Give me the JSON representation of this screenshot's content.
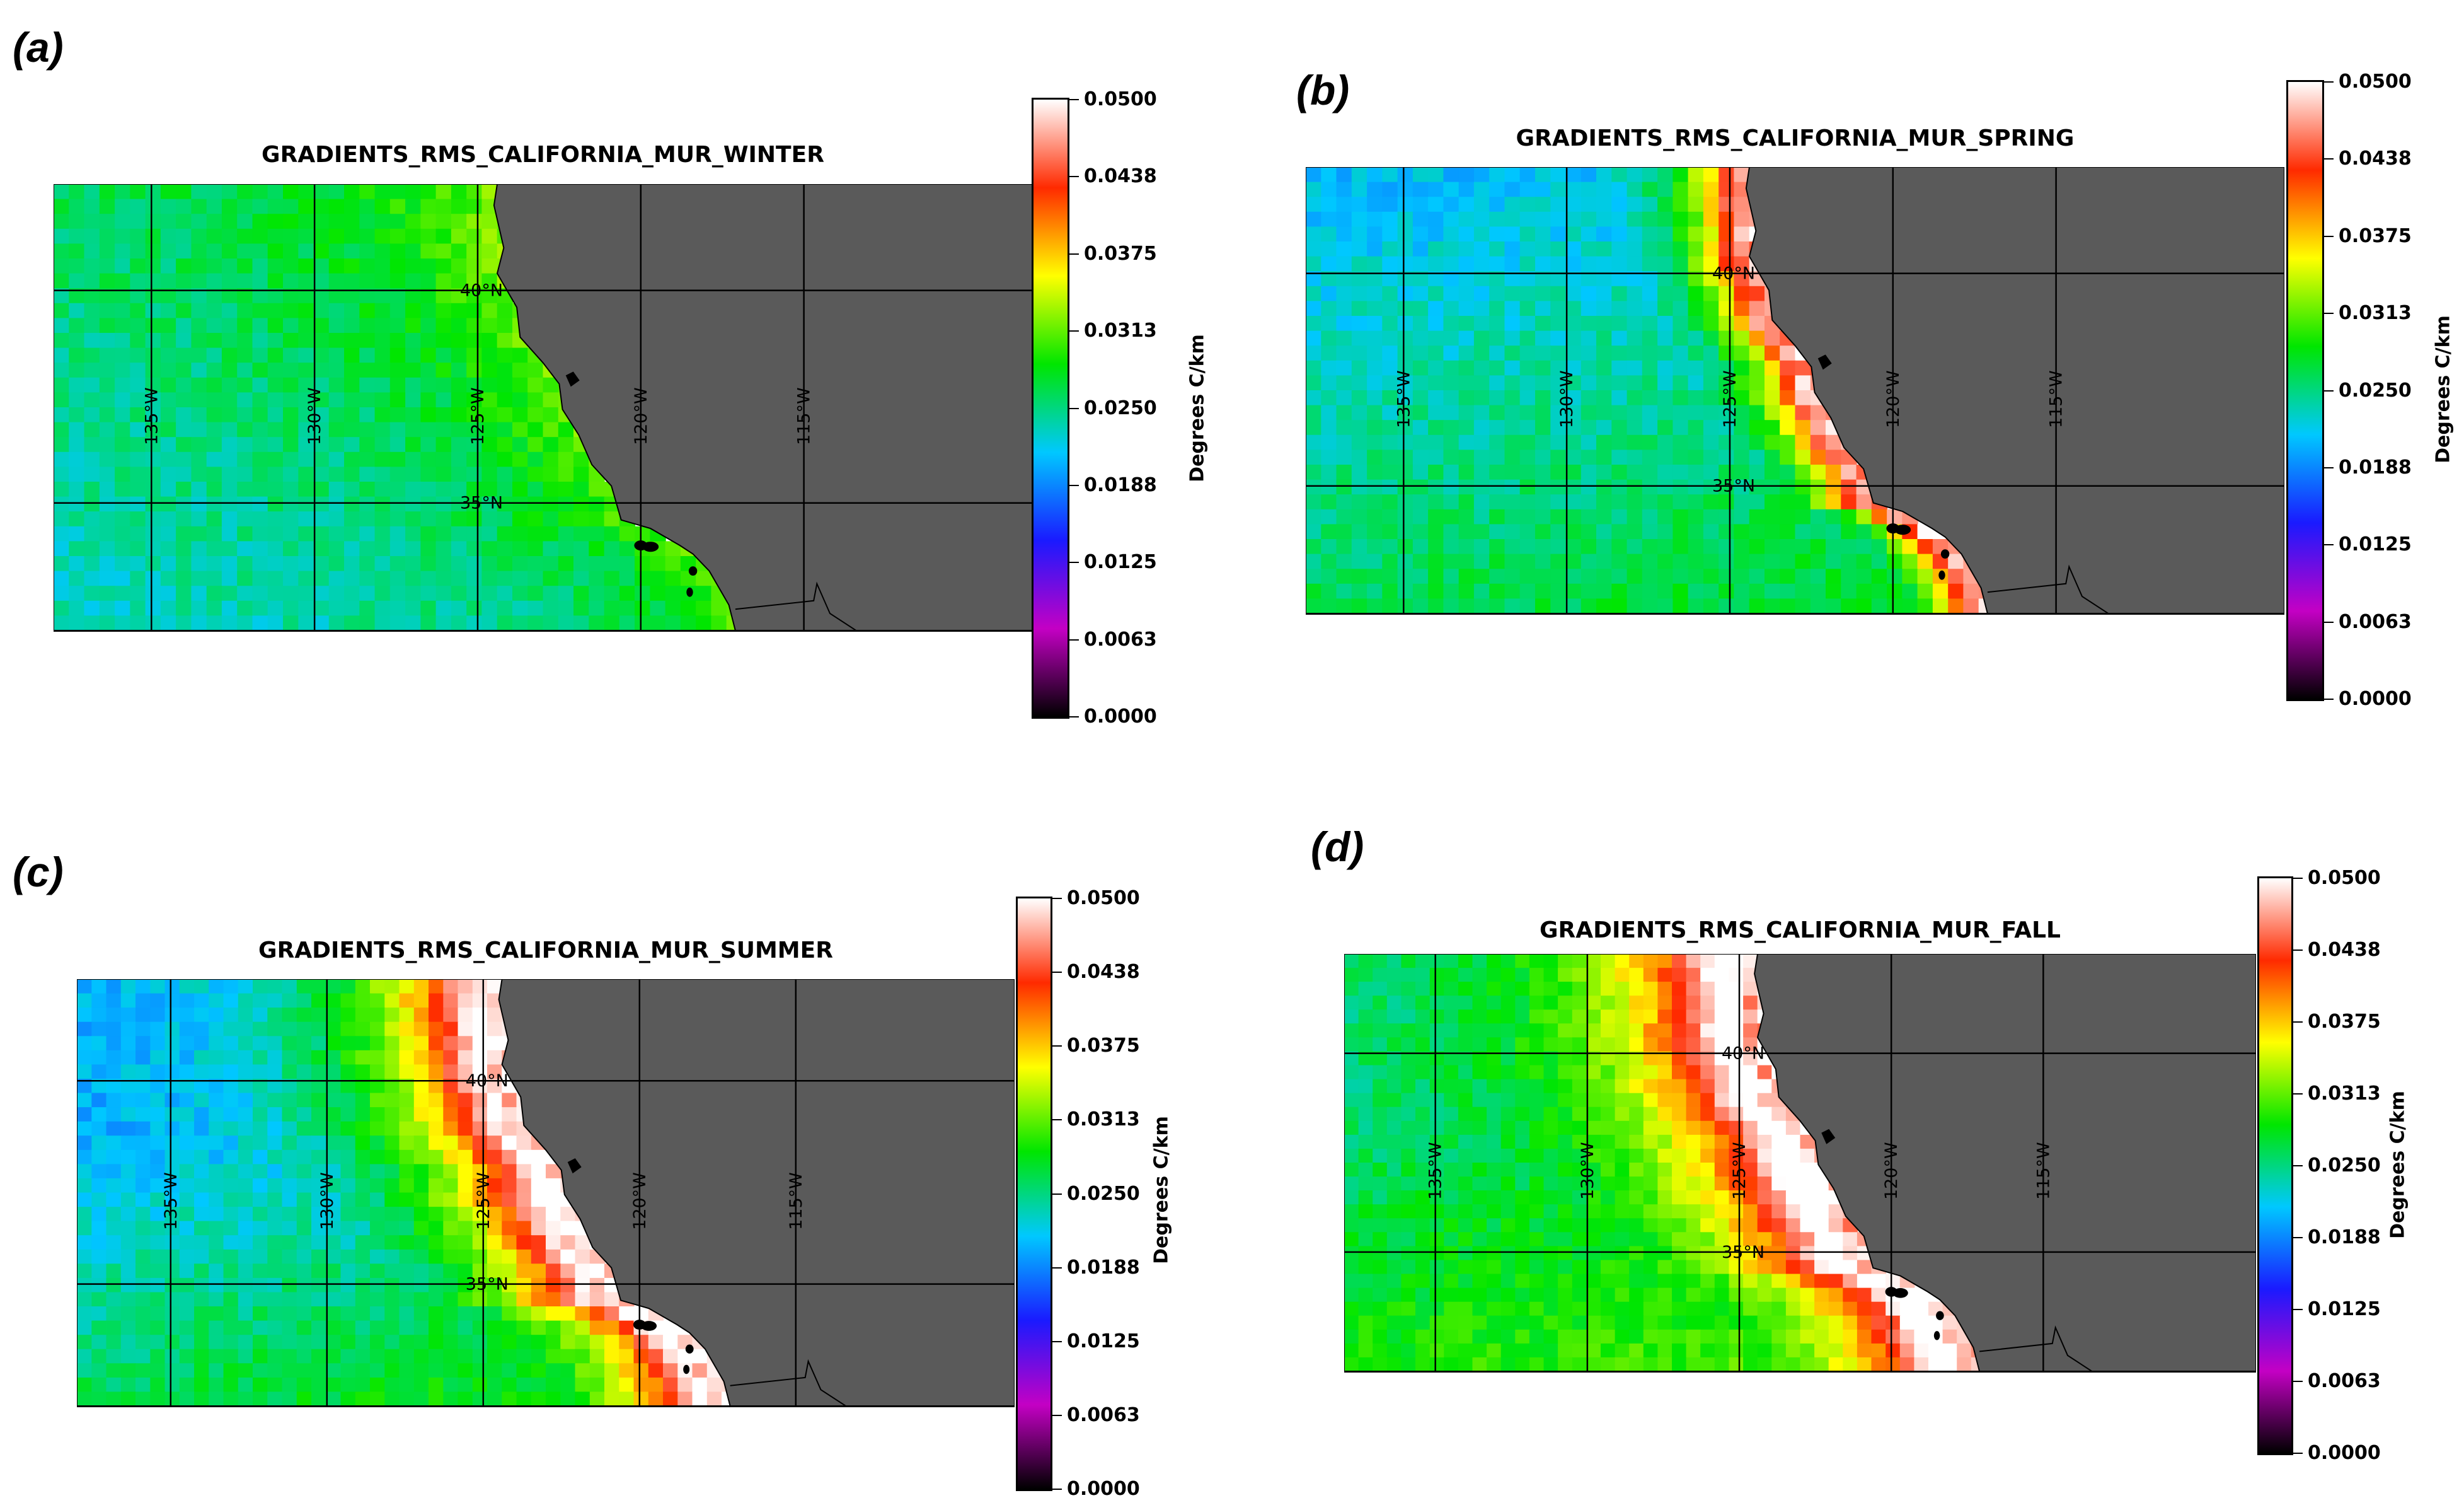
{
  "figure": {
    "panels": [
      {
        "letter": "(a)",
        "title": "GRADIENTS_RMS_CALIFORNIA_MUR_WINTER",
        "season": "winter",
        "grid_labels": {
          "lon": [
            "135°W",
            "130°W",
            "125°W",
            "120°W",
            "115°W"
          ],
          "lat": [
            "40°N",
            "35°N"
          ]
        },
        "colorbar": {
          "label": "Degrees C/km",
          "ticks": [
            "0.0500",
            "0.0438",
            "0.0375",
            "0.0313",
            "0.0250",
            "0.0188",
            "0.0125",
            "0.0063",
            "0.0000"
          ]
        }
      },
      {
        "letter": "(b)",
        "title": "GRADIENTS_RMS_CALIFORNIA_MUR_SPRING",
        "season": "spring",
        "grid_labels": {
          "lon": [
            "135°W",
            "130°W",
            "125°W",
            "120°W",
            "115°W"
          ],
          "lat": [
            "40°N",
            "35°N"
          ]
        },
        "colorbar": {
          "label": "Degrees C/km",
          "ticks": [
            "0.0500",
            "0.0438",
            "0.0375",
            "0.0313",
            "0.0250",
            "0.0188",
            "0.0125",
            "0.0063",
            "0.0000"
          ]
        }
      },
      {
        "letter": "(c)",
        "title": "GRADIENTS_RMS_CALIFORNIA_MUR_SUMMER",
        "season": "summer",
        "grid_labels": {
          "lon": [
            "135°W",
            "130°W",
            "125°W",
            "120°W",
            "115°W"
          ],
          "lat": [
            "40°N",
            "35°N"
          ]
        },
        "colorbar": {
          "label": "Degrees C/km",
          "ticks": [
            "0.0500",
            "0.0438",
            "0.0375",
            "0.0313",
            "0.0250",
            "0.0188",
            "0.0125",
            "0.0063",
            "0.0000"
          ]
        }
      },
      {
        "letter": "(d)",
        "title": "GRADIENTS_RMS_CALIFORNIA_MUR_FALL",
        "season": "fall",
        "grid_labels": {
          "lon": [
            "135°W",
            "130°W",
            "125°W",
            "120°W",
            "115°W"
          ],
          "lat": [
            "40°N",
            "35°N"
          ]
        },
        "colorbar": {
          "label": "Degrees C/km",
          "ticks": [
            "0.0500",
            "0.0438",
            "0.0375",
            "0.0313",
            "0.0250",
            "0.0188",
            "0.0125",
            "0.0063",
            "0.0000"
          ]
        }
      }
    ],
    "colors": {
      "land": "#5a5a5a",
      "colormap": [
        "#000000",
        "#c400c4",
        "#1a1aff",
        "#00c8ff",
        "#00e600",
        "#ffff00",
        "#ff2a00",
        "#ffffff"
      ]
    }
  }
}
